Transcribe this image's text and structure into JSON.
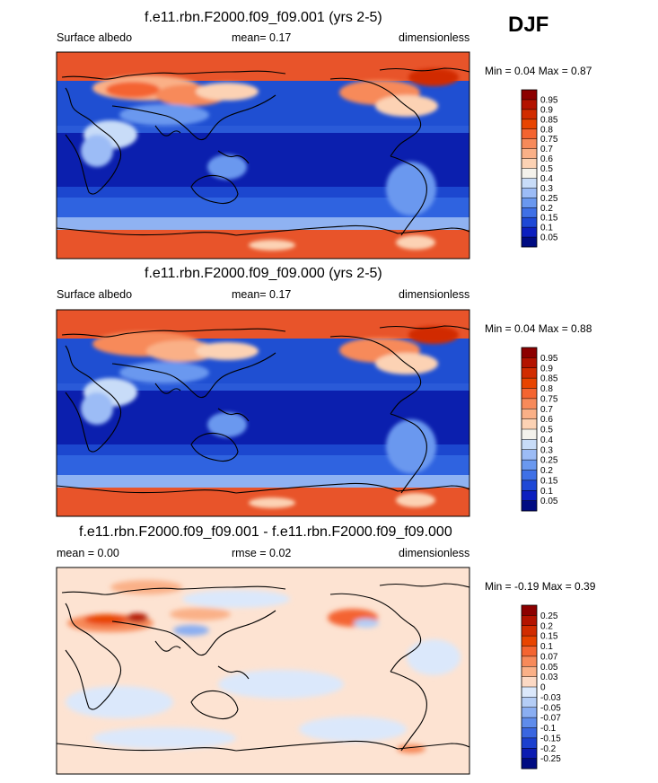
{
  "season": "DJF",
  "chart_data": [
    {
      "type": "heatmap",
      "title": "f.e11.rbn.F2000.f09_f09.001 (yrs 2-5)",
      "left_label": "Surface albedo",
      "center_label": "mean=   0.17",
      "right_label": "dimensionless",
      "minmax_label": "Min =   0.04 Max =   0.87",
      "min": 0.04,
      "max": 0.87,
      "colorbar_levels": [
        "0.95",
        "0.9",
        "0.85",
        "0.8",
        "0.75",
        "0.7",
        "0.6",
        "0.5",
        "0.4",
        "0.3",
        "0.25",
        "0.2",
        "0.15",
        "0.1",
        "0.05"
      ],
      "colorbar_colors": [
        "#8c0000",
        "#b31300",
        "#d12c00",
        "#e84400",
        "#f46430",
        "#f78a5a",
        "#fab087",
        "#fcd2b4",
        "#f4f2ec",
        "#c8dcf8",
        "#9cbcf6",
        "#6a98ef",
        "#3f70e6",
        "#1e48d6",
        "#0c1fbf",
        "#000b82"
      ]
    },
    {
      "type": "heatmap",
      "title": "f.e11.rbn.F2000.f09_f09.000 (yrs 2-5)",
      "left_label": "Surface albedo",
      "center_label": "mean=   0.17",
      "right_label": "dimensionless",
      "minmax_label": "Min =   0.04 Max =   0.88",
      "min": 0.04,
      "max": 0.88,
      "colorbar_levels": [
        "0.95",
        "0.9",
        "0.85",
        "0.8",
        "0.75",
        "0.7",
        "0.6",
        "0.5",
        "0.4",
        "0.3",
        "0.25",
        "0.2",
        "0.15",
        "0.1",
        "0.05"
      ],
      "colorbar_colors": [
        "#8c0000",
        "#b31300",
        "#d12c00",
        "#e84400",
        "#f46430",
        "#f78a5a",
        "#fab087",
        "#fcd2b4",
        "#f4f2ec",
        "#c8dcf8",
        "#9cbcf6",
        "#6a98ef",
        "#3f70e6",
        "#1e48d6",
        "#0c1fbf",
        "#000b82"
      ]
    },
    {
      "type": "heatmap",
      "title": "f.e11.rbn.F2000.f09_f09.001 - f.e11.rbn.F2000.f09_f09.000",
      "left_label": "mean =   0.00",
      "center_label": "rmse =   0.02",
      "right_label": "dimensionless",
      "minmax_label": "Min =  -0.19 Max =   0.39",
      "min": -0.19,
      "max": 0.39,
      "colorbar_levels": [
        "0.25",
        "0.2",
        "0.15",
        "0.1",
        "0.07",
        "0.05",
        "0.03",
        "0",
        "-0.03",
        "-0.05",
        "-0.07",
        "-0.1",
        "-0.15",
        "-0.2",
        "-0.25"
      ],
      "colorbar_colors": [
        "#8c0000",
        "#b31300",
        "#d12c00",
        "#e84400",
        "#f46430",
        "#f78a5a",
        "#fab087",
        "#fcd9c4",
        "#dbe8fb",
        "#b4cdf6",
        "#8aaef2",
        "#5f8ceb",
        "#3a66e0",
        "#1b40cf",
        "#0c1cb2",
        "#000b82"
      ]
    }
  ]
}
